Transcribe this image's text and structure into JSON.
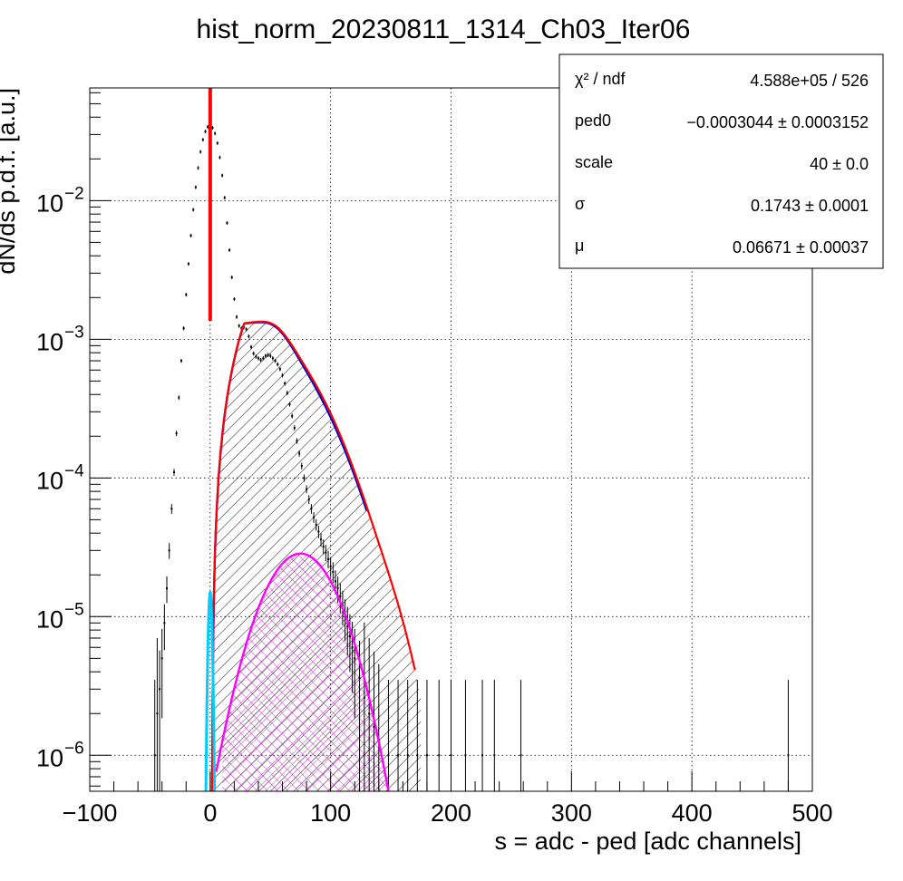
{
  "chart_data": {
    "type": "histogram",
    "title": "hist_norm_20230811_1314_Ch03_Iter06",
    "xlabel": "s = adc - ped [adc channels]",
    "ylabel": "dN/ds p.d.f. [a.u.]",
    "xlim": [
      -100,
      500
    ],
    "ylim": [
      5.5e-07,
      0.065
    ],
    "yscale": "log",
    "grid": true,
    "x_ticks": [
      -100,
      0,
      100,
      200,
      300,
      400,
      500
    ],
    "x_tick_labels": [
      "−100",
      "0",
      "100",
      "200",
      "300",
      "400",
      "500"
    ],
    "y_ticks": [
      {
        "value": 1e-06,
        "base": "10",
        "exp": "−6"
      },
      {
        "value": 1e-05,
        "base": "10",
        "exp": "−5"
      },
      {
        "value": 0.0001,
        "base": "10",
        "exp": "−4"
      },
      {
        "value": 0.001,
        "base": "10",
        "exp": "−3"
      },
      {
        "value": 0.01,
        "base": "10",
        "exp": "−2"
      }
    ],
    "stats_box": {
      "position": "top-right",
      "rows": [
        {
          "name": "χ² / ndf",
          "value": "4.588e+05 / 526"
        },
        {
          "name": "ped0",
          "value": "−0.0003044 ± 0.0003152"
        },
        {
          "name": "scale",
          "value": "40 ± 0.0"
        },
        {
          "name": "σ",
          "value": "0.1743 ± 0.0001"
        },
        {
          "name": "μ",
          "value": "0.06671 ± 0.00037"
        }
      ]
    },
    "pedestal_peak": {
      "x": 0,
      "y": 0.034,
      "sigma": 10.5
    },
    "data_points": [
      [
        -46,
        1e-06
      ],
      [
        -44,
        2e-06
      ],
      [
        -42,
        3e-06
      ],
      [
        -40,
        5e-06
      ],
      [
        -38,
        9e-06
      ],
      [
        -36,
        1.6e-05
      ],
      [
        -34,
        3e-05
      ],
      [
        -32,
        6e-05
      ],
      [
        -30,
        0.00011
      ],
      [
        -28,
        0.00021
      ],
      [
        -26,
        0.00038
      ],
      [
        -24,
        0.0007
      ],
      [
        -22,
        0.0012
      ],
      [
        -20,
        0.0021
      ],
      [
        -18,
        0.0035
      ],
      [
        -16,
        0.0056
      ],
      [
        -14,
        0.0086
      ],
      [
        -12,
        0.0125
      ],
      [
        -10,
        0.0172
      ],
      [
        -8,
        0.0225
      ],
      [
        -6,
        0.0275
      ],
      [
        -4,
        0.0315
      ],
      [
        -2,
        0.034
      ],
      [
        0,
        0.0345
      ],
      [
        2,
        0.0335
      ],
      [
        4,
        0.0305
      ],
      [
        6,
        0.026
      ],
      [
        8,
        0.0205
      ],
      [
        10,
        0.0152
      ],
      [
        12,
        0.0105
      ],
      [
        14,
        0.0069
      ],
      [
        16,
        0.0044
      ],
      [
        18,
        0.0028
      ],
      [
        20,
        0.00195
      ],
      [
        22,
        0.00145
      ],
      [
        24,
        0.00125
      ],
      [
        26,
        0.0012
      ],
      [
        28,
        0.00122
      ],
      [
        30,
        0.00118
      ],
      [
        32,
        0.00105
      ],
      [
        34,
        0.00088
      ],
      [
        36,
        0.00079
      ],
      [
        38,
        0.00075
      ],
      [
        40,
        0.00073
      ],
      [
        42,
        0.00071
      ],
      [
        44,
        0.00073
      ],
      [
        46,
        0.00076
      ],
      [
        48,
        0.00077
      ],
      [
        50,
        0.00076
      ],
      [
        52,
        0.00073
      ],
      [
        54,
        0.0007
      ],
      [
        56,
        0.00066
      ],
      [
        58,
        0.00061
      ],
      [
        60,
        0.00055
      ],
      [
        62,
        0.00048
      ],
      [
        64,
        0.00041
      ],
      [
        66,
        0.00034
      ],
      [
        68,
        0.00028
      ],
      [
        70,
        0.00023
      ],
      [
        72,
        0.000185
      ],
      [
        74,
        0.00015
      ],
      [
        76,
        0.000122
      ],
      [
        78,
        0.0001
      ],
      [
        80,
        8.3e-05
      ],
      [
        82,
        7e-05
      ],
      [
        84,
        6e-05
      ],
      [
        86,
        5.2e-05
      ],
      [
        88,
        4.6e-05
      ],
      [
        90,
        4.1e-05
      ],
      [
        92,
        3.6e-05
      ],
      [
        94,
        3.2e-05
      ],
      [
        96,
        2.9e-05
      ],
      [
        98,
        2.6e-05
      ],
      [
        100,
        2.3e-05
      ],
      [
        102,
        2.1e-05
      ],
      [
        104,
        1.8e-05
      ],
      [
        106,
        1.6e-05
      ],
      [
        108,
        1.4e-05
      ],
      [
        110,
        1.2e-05
      ],
      [
        112,
        1e-05
      ],
      [
        114,
        8.5e-06
      ],
      [
        116,
        7.2e-06
      ],
      [
        118,
        6e-06
      ],
      [
        120,
        5e-06
      ],
      [
        124,
        3.6e-06
      ],
      [
        128,
        2.6e-06
      ],
      [
        132,
        2e-06
      ],
      [
        136,
        1.6e-06
      ],
      [
        140,
        1.3e-06
      ],
      [
        148,
        1e-06
      ],
      [
        156,
        1e-06
      ],
      [
        164,
        1e-06
      ],
      [
        172,
        1e-06
      ],
      [
        180,
        1e-06
      ],
      [
        190,
        1e-06
      ],
      [
        200,
        1e-06
      ],
      [
        212,
        1e-06
      ],
      [
        226,
        1e-06
      ],
      [
        236,
        1e-06
      ],
      [
        258,
        1e-06
      ],
      [
        480,
        1e-06
      ]
    ],
    "series": [
      {
        "component": "total fit",
        "color": "#ff0000",
        "peak_x": 28,
        "peak_y": 0.0013
      },
      {
        "component": "single-pe fit",
        "color": "#0000cc",
        "peak_x": 28,
        "peak_y": 0.00128
      },
      {
        "component": "multi-pe fit",
        "color": "#ff00ff",
        "peak_x": 75,
        "peak_y": 2.85e-05
      },
      {
        "component": "pedestal fit",
        "color": "#00ccff",
        "peak_x": 0,
        "peak_y": 1.5e-05
      }
    ]
  }
}
